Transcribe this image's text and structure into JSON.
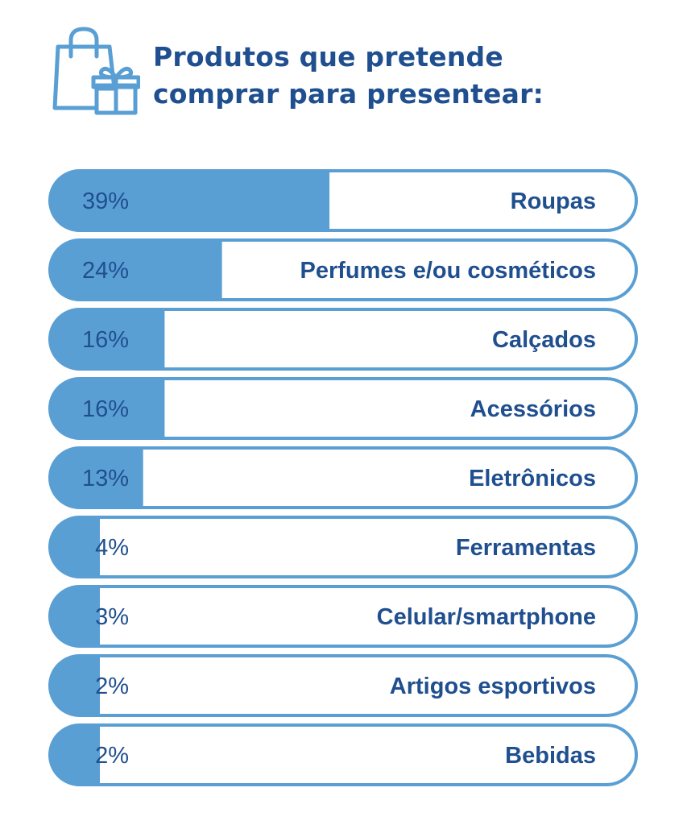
{
  "header": {
    "title_line1": "Produtos que pretende",
    "title_line2": "comprar para presentear:",
    "icon": "shopping-bag-gift-icon"
  },
  "colors": {
    "fill": "#5a9fd4",
    "outline": "#5a9fd4",
    "text": "#1f4f8f",
    "background": "#ffffff"
  },
  "chart_data": {
    "type": "bar",
    "orientation": "horizontal",
    "categories": [
      "Roupas",
      "Perfumes e/ou cosméticos",
      "Calçados",
      "Acessórios",
      "Eletrônicos",
      "Ferramentas",
      "Celular/smartphone",
      "Artigos esportivos",
      "Bebidas"
    ],
    "values": [
      39,
      24,
      16,
      16,
      13,
      4,
      3,
      2,
      2
    ],
    "value_labels": [
      "39%",
      "24%",
      "16%",
      "16%",
      "13%",
      "4%",
      "3%",
      "2%",
      "2%"
    ],
    "title": "Produtos que pretende comprar para presentear:",
    "xlabel": "",
    "ylabel": "",
    "unit": "%",
    "xlim": [
      0,
      100
    ],
    "grid": false,
    "legend": "none"
  }
}
